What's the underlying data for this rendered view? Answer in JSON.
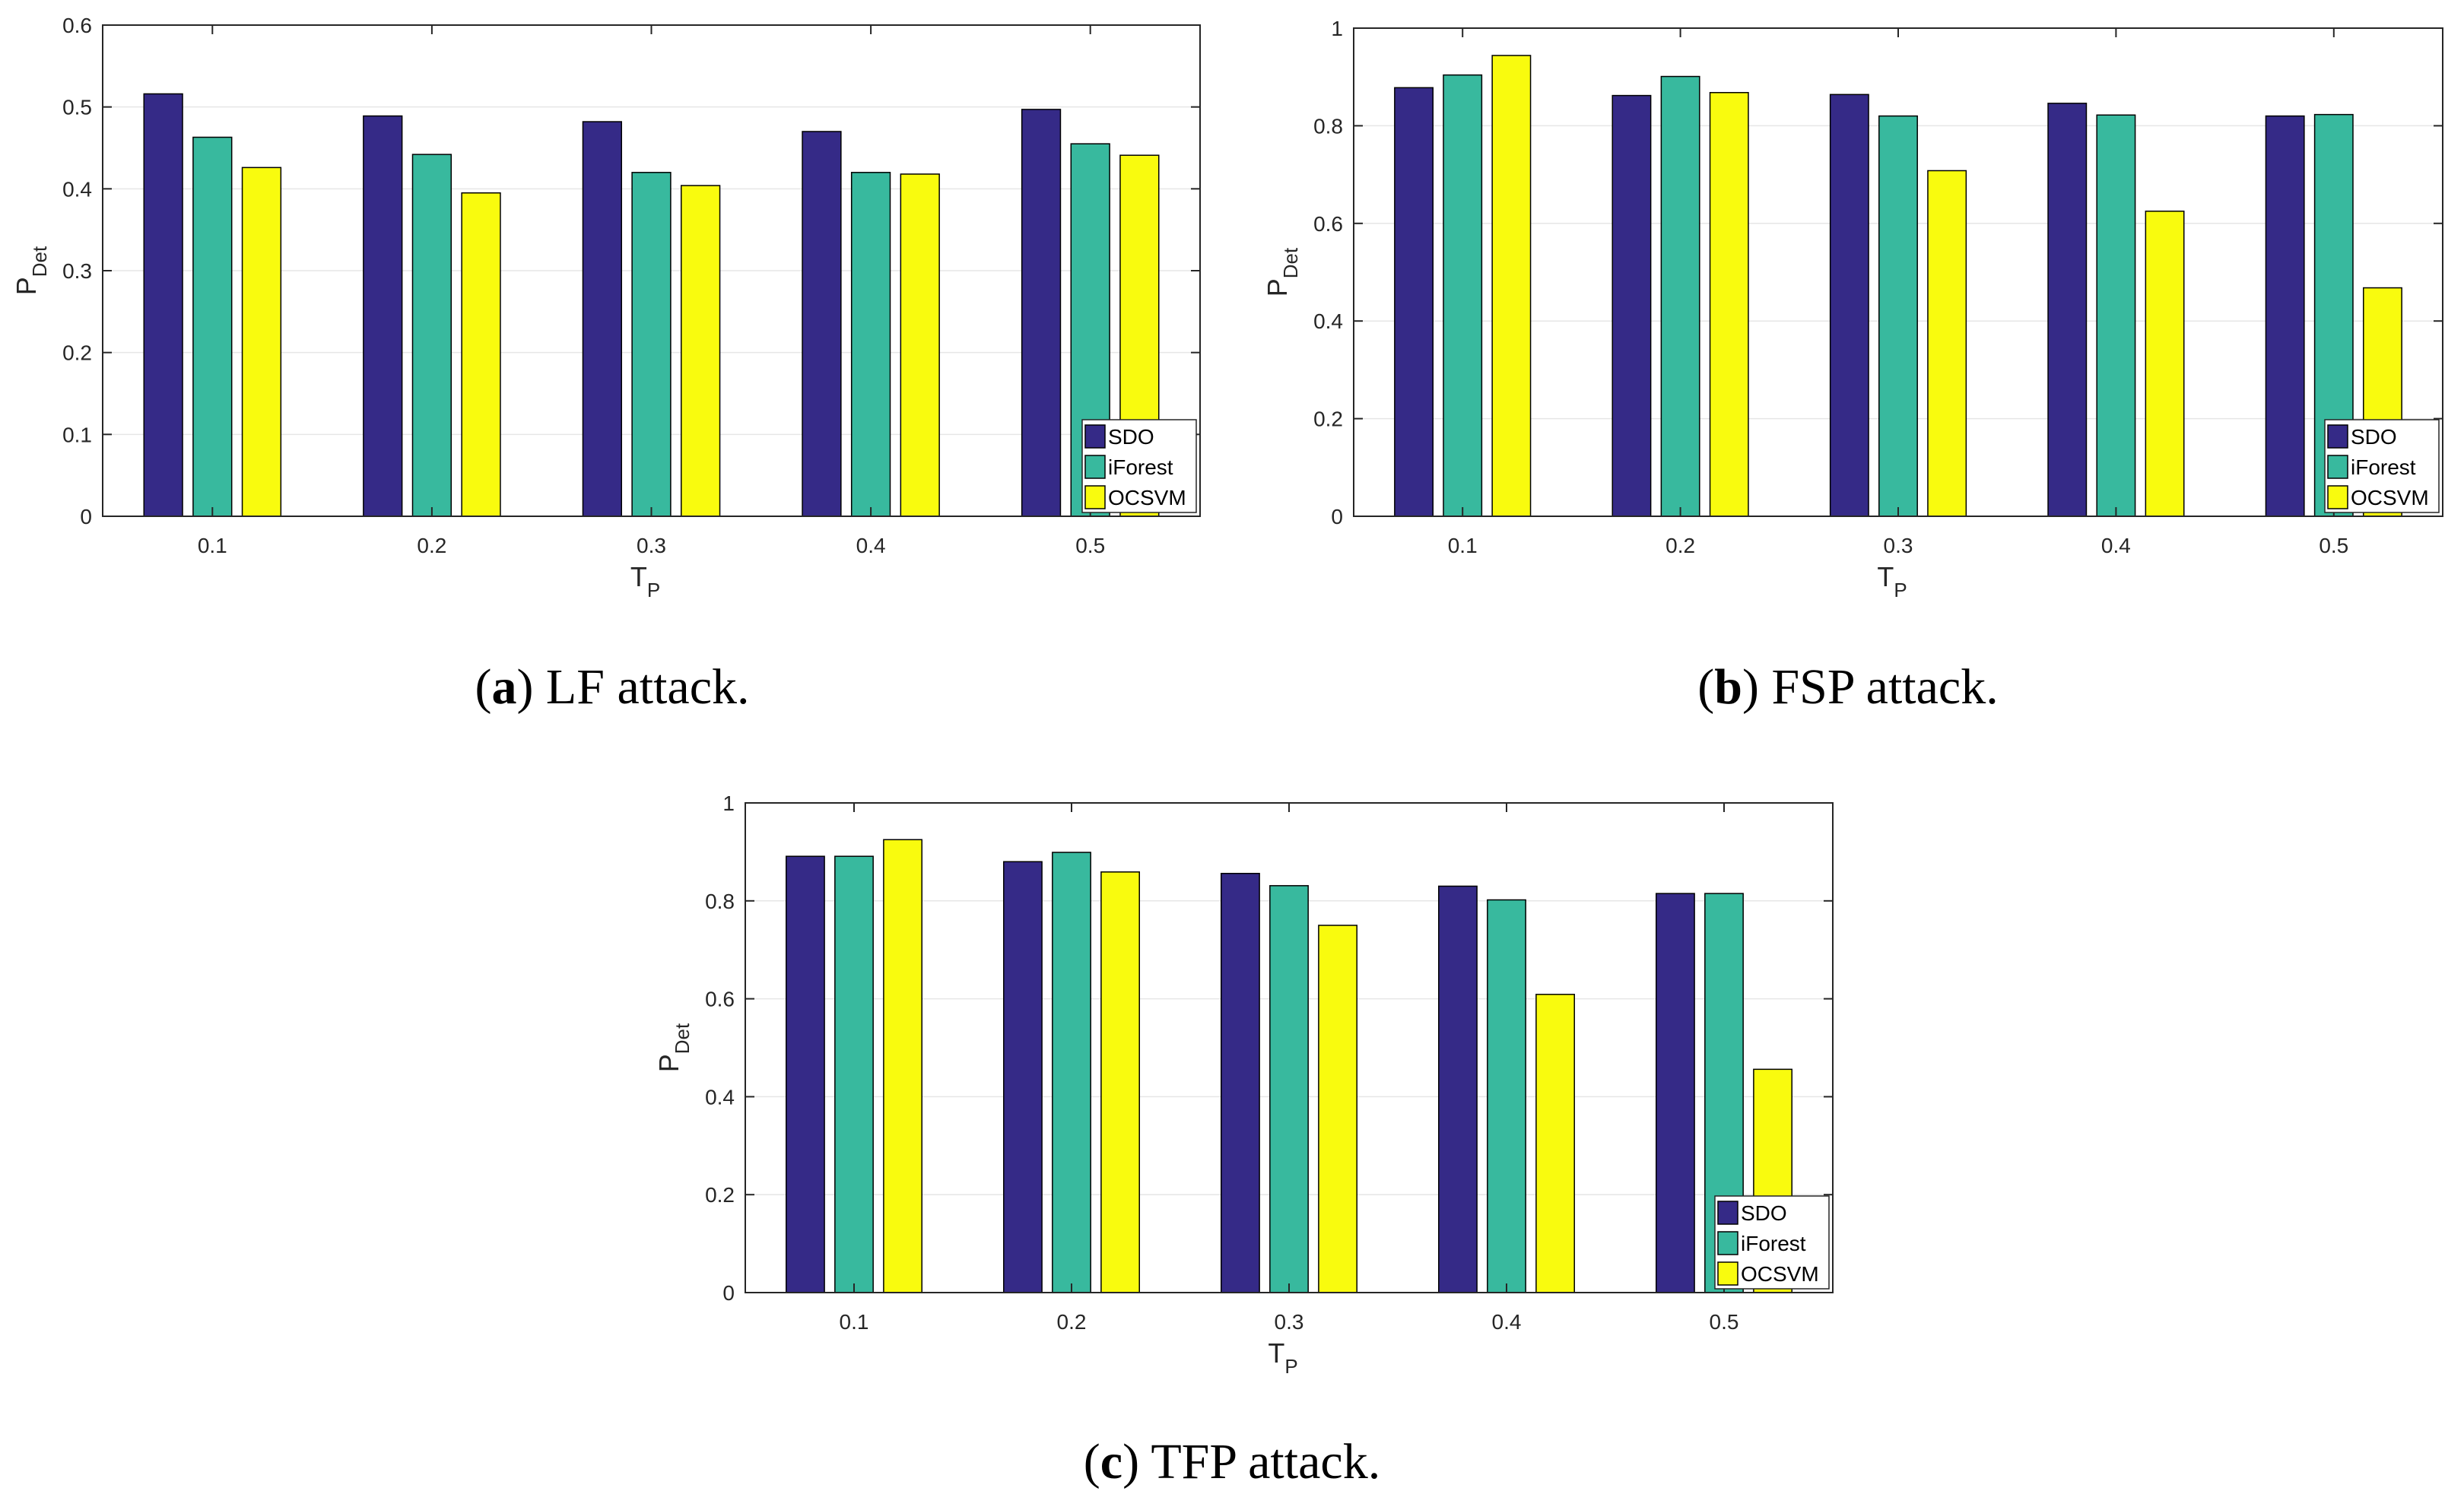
{
  "colors": {
    "SDO": "#352a87",
    "iForest": "#38b99e",
    "OCSVM": "#f9fb0e"
  },
  "chart_data": [
    {
      "type": "bar",
      "caption": {
        "prefix": "(",
        "letter": "a",
        "text": ") LF attack."
      },
      "categories": [
        "0.1",
        "0.2",
        "0.3",
        "0.4",
        "0.5"
      ],
      "series": [
        {
          "name": "SDO",
          "values": [
            0.516,
            0.489,
            0.482,
            0.47,
            0.497
          ]
        },
        {
          "name": "iForest",
          "values": [
            0.463,
            0.442,
            0.42,
            0.42,
            0.455
          ]
        },
        {
          "name": "OCSVM",
          "values": [
            0.426,
            0.395,
            0.404,
            0.418,
            0.441
          ]
        }
      ],
      "xlabel": "T",
      "xlabel_sub": "P",
      "ylabel": "P",
      "ylabel_sub": "Det",
      "ylim": [
        0,
        0.6
      ],
      "yticks": [
        0,
        0.1,
        0.2,
        0.3,
        0.4,
        0.5,
        0.6
      ],
      "ytick_labels": [
        "0",
        "0.1",
        "0.2",
        "0.3",
        "0.4",
        "0.5",
        "0.6"
      ],
      "grid": true,
      "legend": "bottom-right"
    },
    {
      "type": "bar",
      "caption": {
        "prefix": "(",
        "letter": "b",
        "text": ") FSP attack."
      },
      "categories": [
        "0.1",
        "0.2",
        "0.3",
        "0.4",
        "0.5"
      ],
      "series": [
        {
          "name": "SDO",
          "values": [
            0.878,
            0.862,
            0.864,
            0.846,
            0.82
          ]
        },
        {
          "name": "iForest",
          "values": [
            0.904,
            0.901,
            0.82,
            0.822,
            0.823
          ]
        },
        {
          "name": "OCSVM",
          "values": [
            0.944,
            0.868,
            0.708,
            0.625,
            0.468
          ]
        }
      ],
      "xlabel": "T",
      "xlabel_sub": "P",
      "ylabel": "P",
      "ylabel_sub": "Det",
      "ylim": [
        0,
        1
      ],
      "yticks": [
        0,
        0.2,
        0.4,
        0.6,
        0.8,
        1
      ],
      "ytick_labels": [
        "0",
        "0.2",
        "0.4",
        "0.6",
        "0.8",
        "1"
      ],
      "grid": true,
      "legend": "bottom-right"
    },
    {
      "type": "bar",
      "caption": {
        "prefix": "(",
        "letter": "c",
        "text": ") TFP attack."
      },
      "categories": [
        "0.1",
        "0.2",
        "0.3",
        "0.4",
        "0.5"
      ],
      "series": [
        {
          "name": "SDO",
          "values": [
            0.891,
            0.88,
            0.856,
            0.83,
            0.815
          ]
        },
        {
          "name": "iForest",
          "values": [
            0.891,
            0.899,
            0.831,
            0.802,
            0.815
          ]
        },
        {
          "name": "OCSVM",
          "values": [
            0.925,
            0.859,
            0.75,
            0.609,
            0.456
          ]
        }
      ],
      "xlabel": "T",
      "xlabel_sub": "P",
      "ylabel": "P",
      "ylabel_sub": "Det",
      "ylim": [
        0,
        1
      ],
      "yticks": [
        0,
        0.2,
        0.4,
        0.6,
        0.8,
        1
      ],
      "ytick_labels": [
        "0",
        "0.2",
        "0.4",
        "0.6",
        "0.8",
        "1"
      ],
      "grid": true,
      "legend": "bottom-right"
    }
  ]
}
